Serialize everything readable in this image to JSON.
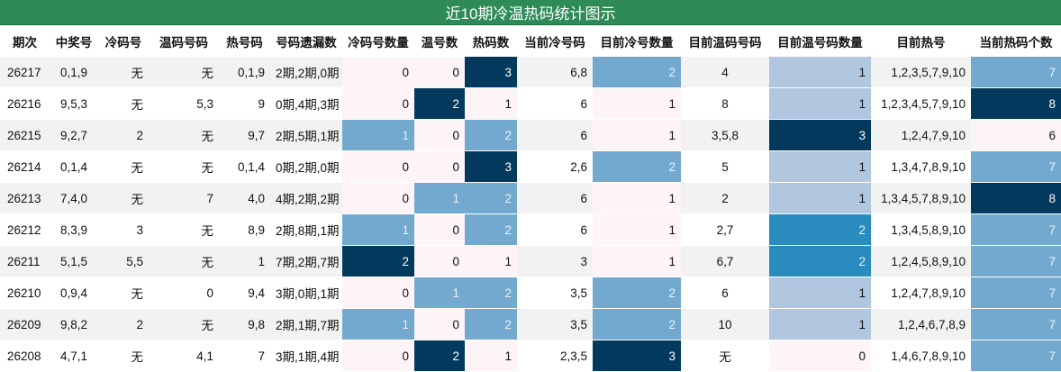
{
  "title": "近10期冷温热码统计图示",
  "colors": {
    "title_bg": "#2e8b57",
    "title_text": "#ffffff",
    "level_0": "#fdf4f8",
    "level_1": "#74a9cf",
    "level_2": "#03395c",
    "stripe": "#f2f2f2",
    "white": "#ffffff",
    "cold_max": "#03395c",
    "cold_mid": "#74a9cf",
    "warm_low": "#b1c6df",
    "warm_mid": "#2a8bbf",
    "warm_high": "#03395c"
  },
  "columns": [
    "期次",
    "中奖号",
    "冷码号",
    "温码号码",
    "热号码",
    "号码遗漏数",
    "冷码号数量",
    "温号数",
    "热码数",
    "当前冷号码",
    "目前冷号数量",
    "目前温码号码",
    "目前温号码数量",
    "目前热号",
    "当前热码个数"
  ],
  "rows": [
    [
      "26217",
      "0,1,9",
      "无",
      "无",
      "0,1,9",
      "2期,2期,0期",
      "0",
      "0",
      "3",
      "6,8",
      "2",
      "4",
      "1",
      "1,2,3,5,7,9,10",
      "7"
    ],
    [
      "26216",
      "9,5,3",
      "无",
      "5,3",
      "9",
      "0期,4期,3期",
      "0",
      "2",
      "1",
      "6",
      "1",
      "8",
      "1",
      "1,2,3,4,5,7,9,10",
      "8"
    ],
    [
      "26215",
      "9,2,7",
      "2",
      "无",
      "9,7",
      "2期,5期,1期",
      "1",
      "0",
      "2",
      "6",
      "1",
      "3,5,8",
      "3",
      "1,2,4,7,9,10",
      "6"
    ],
    [
      "26214",
      "0,1,4",
      "无",
      "无",
      "0,1,4",
      "0期,2期,0期",
      "0",
      "0",
      "3",
      "2,6",
      "2",
      "5",
      "1",
      "1,3,4,7,8,9,10",
      "7"
    ],
    [
      "26213",
      "7,4,0",
      "无",
      "7",
      "4,0",
      "4期,2期,2期",
      "0",
      "1",
      "2",
      "6",
      "1",
      "2",
      "1",
      "1,3,4,5,7,8,9,10",
      "8"
    ],
    [
      "26212",
      "8,3,9",
      "3",
      "无",
      "8,9",
      "2期,8期,1期",
      "1",
      "0",
      "2",
      "6",
      "1",
      "2,7",
      "2",
      "1,3,4,5,8,9,10",
      "7"
    ],
    [
      "26211",
      "5,1,5",
      "5,5",
      "无",
      "1",
      "7期,2期,7期",
      "2",
      "0",
      "1",
      "3",
      "1",
      "6,7",
      "2",
      "1,2,4,5,8,9,10",
      "7"
    ],
    [
      "26210",
      "0,9,4",
      "无",
      "0",
      "9,4",
      "3期,0期,1期",
      "0",
      "1",
      "2",
      "3,5",
      "2",
      "6",
      "1",
      "1,2,4,7,8,9,10",
      "7"
    ],
    [
      "26209",
      "9,8,2",
      "2",
      "无",
      "9,8",
      "2期,1期,7期",
      "1",
      "0",
      "2",
      "3,5",
      "2",
      "10",
      "1",
      "1,2,4,6,7,8,9",
      "7"
    ],
    [
      "26208",
      "4,7,1",
      "无",
      "4,1",
      "7",
      "3期,1期,4期",
      "0",
      "2",
      "1",
      "2,3,5",
      "3",
      "无",
      "0",
      "1,4,6,7,8,9,10",
      "7"
    ]
  ]
}
